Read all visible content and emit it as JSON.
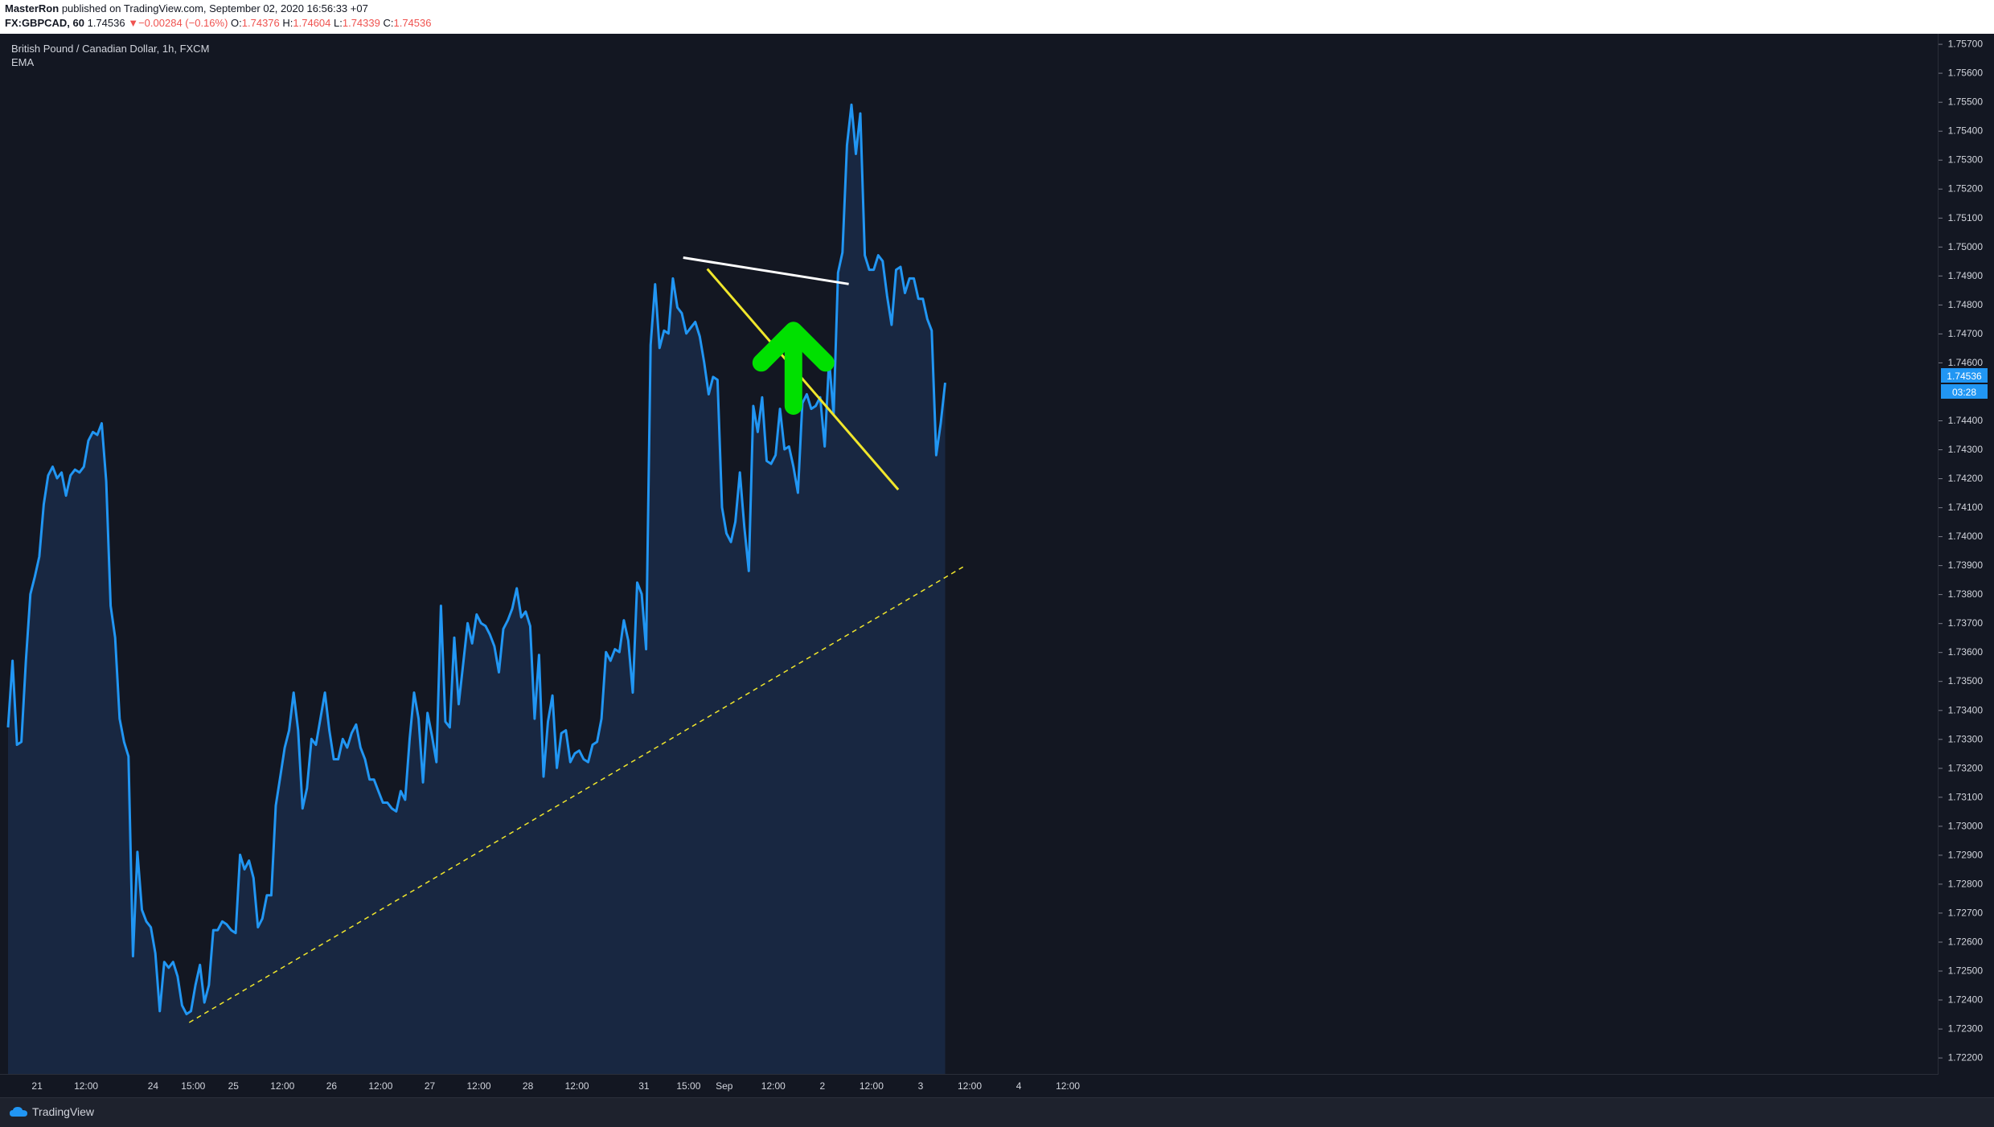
{
  "header": {
    "author": "MasterRon",
    "published_text": "published on TradingView.com, September 02, 2020 16:56:33 +07",
    "symbol": "FX:GBPCAD, 60",
    "last_price": "1.74536",
    "change_arrow": "▼",
    "change_text": "−0.00284 (−0.16%)",
    "o_label": "O:",
    "o_value": "1.74376",
    "h_label": "H:",
    "h_value": "1.74604",
    "l_label": "L:",
    "l_value": "1.74339",
    "c_label": "C:",
    "c_value": "1.74536"
  },
  "legend": {
    "title": "British Pound / Canadian Dollar, 1h, FXCM",
    "indicator": "EMA"
  },
  "price_badge": {
    "value": "1.74536",
    "countdown": "03:28"
  },
  "footer": {
    "brand": "TradingView",
    "logo_icon": "tradingview-cloud-icon"
  },
  "colors": {
    "background": "#131722",
    "line": "#2196f3",
    "area": "#182741",
    "trend_white": "#ffffff",
    "trend_yellow": "#f0e62c",
    "arrow": "#00e000",
    "badge": "#2196f3"
  },
  "chart_data": {
    "type": "area",
    "y_ticks": [
      "1.75700",
      "1.75600",
      "1.75500",
      "1.75400",
      "1.75300",
      "1.75200",
      "1.75100",
      "1.75000",
      "1.74900",
      "1.74800",
      "1.74700",
      "1.74600",
      "1.74400",
      "1.74300",
      "1.74200",
      "1.74100",
      "1.74000",
      "1.73900",
      "1.73800",
      "1.73700",
      "1.73600",
      "1.73500",
      "1.73400",
      "1.73300",
      "1.73200",
      "1.73100",
      "1.73000",
      "1.72900",
      "1.72800",
      "1.72700",
      "1.72600",
      "1.72500",
      "1.72400",
      "1.72300",
      "1.72200"
    ],
    "x_ticks": [
      "21",
      "12:00",
      "24",
      "15:00",
      "25",
      "12:00",
      "26",
      "12:00",
      "27",
      "12:00",
      "28",
      "12:00",
      "31",
      "15:00",
      "Sep",
      "12:00",
      "2",
      "12:00",
      "3",
      "12:00",
      "4",
      "12:00"
    ],
    "x_tick_slots": [
      6.5,
      17.5,
      32.5,
      41.5,
      50.5,
      61.5,
      72.5,
      83.5,
      94.5,
      105.5,
      116.5,
      127.5,
      142.5,
      152.5,
      160.5,
      171.5,
      182.5,
      193.5,
      204.5,
      215.5,
      226.5,
      237.5
    ],
    "ylim": [
      1.7216,
      1.75735
    ],
    "grid": false,
    "series": [
      {
        "values": [
          1.7334,
          1.7357,
          1.7328,
          1.7329,
          1.7357,
          1.738,
          1.7386,
          1.7393,
          1.7411,
          1.7421,
          1.7424,
          1.742,
          1.7422,
          1.7414,
          1.7421,
          1.7423,
          1.7422,
          1.7424,
          1.7433,
          1.7436,
          1.7435,
          1.7439,
          1.7419,
          1.7376,
          1.7365,
          1.7337,
          1.7329,
          1.7324,
          1.7255,
          1.7291,
          1.7271,
          1.7267,
          1.7265,
          1.7256,
          1.7236,
          1.7253,
          1.7251,
          1.7253,
          1.7248,
          1.7238,
          1.7235,
          1.7236,
          1.7245,
          1.7252,
          1.7239,
          1.7245,
          1.7264,
          1.7264,
          1.7267,
          1.7266,
          1.7264,
          1.7263,
          1.729,
          1.7285,
          1.7288,
          1.7282,
          1.7265,
          1.7268,
          1.7276,
          1.7276,
          1.7307,
          1.7317,
          1.7327,
          1.7333,
          1.7346,
          1.7333,
          1.7306,
          1.7313,
          1.733,
          1.7328,
          1.7337,
          1.7346,
          1.7333,
          1.7323,
          1.7323,
          1.733,
          1.7327,
          1.7332,
          1.7335,
          1.7327,
          1.7323,
          1.7316,
          1.7316,
          1.7312,
          1.7308,
          1.7308,
          1.7306,
          1.7305,
          1.7312,
          1.7309,
          1.733,
          1.7346,
          1.7337,
          1.7315,
          1.7339,
          1.7331,
          1.7322,
          1.7376,
          1.7336,
          1.7334,
          1.7365,
          1.7342,
          1.7356,
          1.737,
          1.7363,
          1.7373,
          1.737,
          1.7369,
          1.7366,
          1.7362,
          1.7353,
          1.7368,
          1.7371,
          1.7375,
          1.7382,
          1.7372,
          1.7374,
          1.7369,
          1.7337,
          1.7359,
          1.7317,
          1.7336,
          1.7345,
          1.732,
          1.7332,
          1.7333,
          1.7322,
          1.7325,
          1.7326,
          1.7323,
          1.7322,
          1.7328,
          1.7329,
          1.7337,
          1.736,
          1.7357,
          1.7361,
          1.736,
          1.7371,
          1.7364,
          1.7346,
          1.7384,
          1.738,
          1.7361,
          1.7466,
          1.7487,
          1.7465,
          1.7471,
          1.747,
          1.7489,
          1.7479,
          1.7477,
          1.747,
          1.7472,
          1.7474,
          1.7469,
          1.746,
          1.7449,
          1.7455,
          1.7454,
          1.741,
          1.7401,
          1.7398,
          1.7405,
          1.7422,
          1.7403,
          1.7388,
          1.7445,
          1.7436,
          1.7448,
          1.7426,
          1.7425,
          1.7428,
          1.7444,
          1.743,
          1.7431,
          1.7424,
          1.7415,
          1.7446,
          1.7449,
          1.7444,
          1.7445,
          1.7448,
          1.7431,
          1.7461,
          1.7442,
          1.7491,
          1.7498,
          1.7535,
          1.7549,
          1.7532,
          1.7546,
          1.7497,
          1.7492,
          1.7492,
          1.7497,
          1.7495,
          1.7483,
          1.7473,
          1.7492,
          1.7493,
          1.7484,
          1.7489,
          1.7489,
          1.7482,
          1.7482,
          1.7475,
          1.7471,
          1.7428,
          1.7439,
          1.7453
        ]
      }
    ],
    "trendlines": [
      {
        "color": "white",
        "from": {
          "slot": 151.3,
          "price": 1.74962
        },
        "to": {
          "slot": 188.4,
          "price": 1.74871
        }
      },
      {
        "color": "yellow",
        "from": {
          "slot": 156.7,
          "price": 1.74923
        },
        "to": {
          "slot": 199.5,
          "price": 1.74161
        }
      },
      {
        "color": "yellow-dashed",
        "from": {
          "slot": 40.6,
          "price": 1.72321
        },
        "to": {
          "slot": 214,
          "price": 1.73894
        }
      }
    ],
    "arrow_annotation": {
      "direction": "up",
      "color": "green",
      "slot": 176,
      "price_tip": 1.7471,
      "price_base": 1.7445
    }
  }
}
